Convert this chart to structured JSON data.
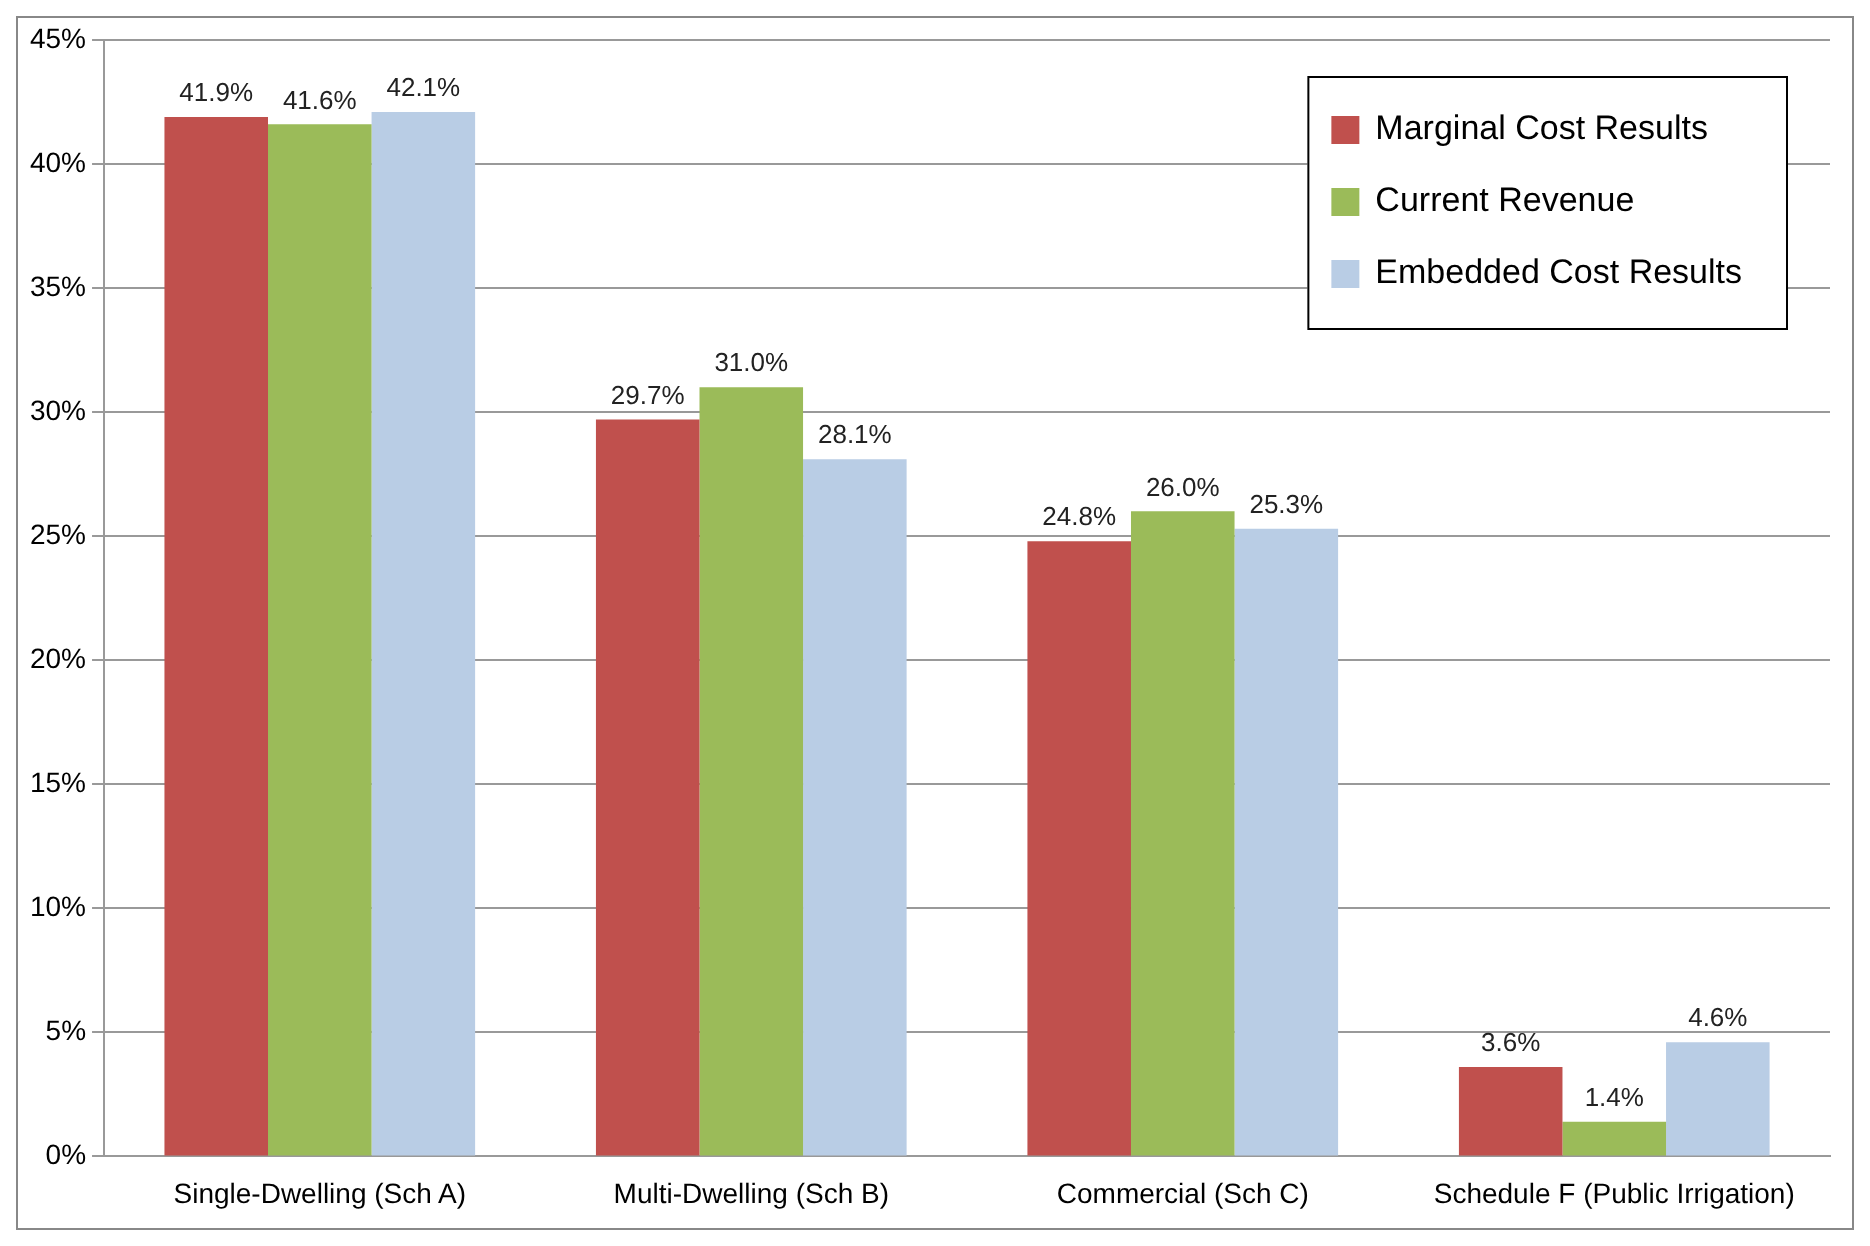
{
  "chart_data": {
    "type": "bar",
    "categories": [
      "Single-Dwelling (Sch A)",
      "Multi-Dwelling (Sch B)",
      "Commercial (Sch C)",
      "Schedule F (Public Irrigation)"
    ],
    "series": [
      {
        "name": "Marginal Cost Results",
        "color": "#c0504d",
        "values": [
          41.9,
          29.7,
          24.8,
          3.6
        ],
        "value_labels": [
          "41.9%",
          "29.7%",
          "24.8%",
          "3.6%"
        ]
      },
      {
        "name": "Current Revenue",
        "color": "#9bbb59",
        "values": [
          41.6,
          31.0,
          26.0,
          1.4
        ],
        "value_labels": [
          "41.6%",
          "31.0%",
          "26.0%",
          "1.4%"
        ]
      },
      {
        "name": "Embedded Cost Results",
        "color": "#b9cde5",
        "values": [
          42.1,
          28.1,
          25.3,
          4.6
        ],
        "value_labels": [
          "42.1%",
          "28.1%",
          "25.3%",
          "4.6%"
        ]
      }
    ],
    "ylim": [
      0,
      45
    ],
    "yticks": [
      {
        "value": 0,
        "label": "0%"
      },
      {
        "value": 5,
        "label": "5%"
      },
      {
        "value": 10,
        "label": "10%"
      },
      {
        "value": 15,
        "label": "15%"
      },
      {
        "value": 20,
        "label": "20%"
      },
      {
        "value": 25,
        "label": "25%"
      },
      {
        "value": 30,
        "label": "30%"
      },
      {
        "value": 35,
        "label": "35%"
      },
      {
        "value": 40,
        "label": "40%"
      },
      {
        "value": 45,
        "label": "45%"
      }
    ],
    "grid": "y",
    "legend": "top right"
  }
}
